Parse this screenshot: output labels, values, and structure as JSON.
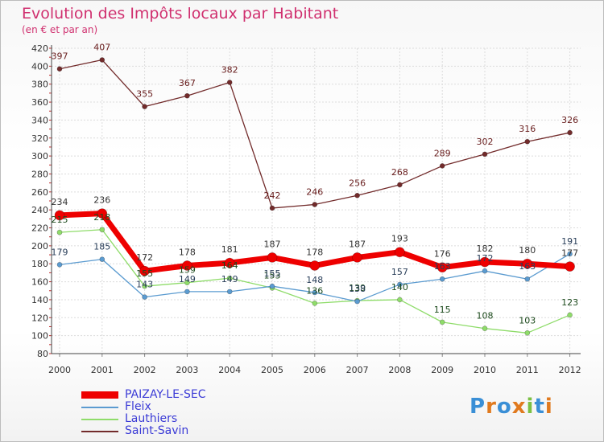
{
  "title": "Evolution des Impôts locaux par Habitant",
  "subtitle": "(en € et par an)",
  "logo": {
    "letters": [
      "P",
      "r",
      "o",
      "x",
      "i",
      "t",
      "i"
    ],
    "colors": [
      "#3a8fd6",
      "#e07a1f",
      "#3a8fd6",
      "#e07a1f",
      "#7bc043",
      "#3a8fd6",
      "#e07a1f"
    ]
  },
  "chart_data": {
    "type": "line",
    "title": "Evolution des Impôts locaux par Habitant",
    "subtitle": "(en € et par an)",
    "xlabel": "",
    "ylabel": "",
    "x": [
      "2000",
      "2001",
      "2002",
      "2003",
      "2004",
      "2005",
      "2006",
      "2007",
      "2008",
      "2009",
      "2010",
      "2011",
      "2012"
    ],
    "ylim": [
      80,
      420
    ],
    "yticks": [
      80,
      100,
      120,
      140,
      160,
      180,
      200,
      220,
      240,
      260,
      280,
      300,
      320,
      340,
      360,
      380,
      400,
      420
    ],
    "grid": true,
    "legend_position": "bottom-left",
    "series": [
      {
        "name": "Saint-Savin",
        "color": "#722b2b",
        "label_color": "#6a2020",
        "values": [
          397,
          407,
          355,
          367,
          382,
          242,
          246,
          256,
          268,
          289,
          302,
          316,
          326
        ],
        "labels": [
          "397",
          "407",
          "355",
          "367",
          "382",
          "242",
          "246",
          "256",
          "268",
          "289",
          "302",
          "316",
          "326"
        ]
      },
      {
        "name": "Lauthiers",
        "color": "#8fdc6a",
        "label_color": "#1c4a1c",
        "values": [
          215,
          218,
          155,
          159,
          164,
          153,
          136,
          139,
          140,
          115,
          108,
          103,
          123
        ],
        "labels": [
          "215",
          "218",
          "155",
          "159",
          "164",
          "153",
          "136",
          "139",
          "140",
          "115",
          "108",
          "103",
          "123"
        ]
      },
      {
        "name": "Fleix",
        "color": "#5b9bd0",
        "label_color": "#2a3f5a",
        "values": [
          179,
          185,
          143,
          149,
          149,
          155,
          148,
          138,
          157,
          163,
          172,
          163,
          191
        ],
        "labels": [
          "179",
          "185",
          "143",
          "149",
          "149",
          "155",
          "148",
          "138",
          "157",
          "163",
          "172",
          "163",
          "191"
        ]
      },
      {
        "name": "PAIZAY-LE-SEC",
        "color": "#ee0000",
        "label_color": "#333333",
        "values": [
          234,
          236,
          172,
          178,
          181,
          187,
          178,
          187,
          193,
          176,
          182,
          180,
          177
        ],
        "labels": [
          "234",
          "236",
          "172",
          "178",
          "181",
          "187",
          "178",
          "187",
          "193",
          "176",
          "182",
          "180",
          "177"
        ]
      }
    ],
    "legend": [
      {
        "name": "PAIZAY-LE-SEC",
        "color": "#ee0000",
        "text_color": "#3b3bd6"
      },
      {
        "name": "Fleix",
        "color": "#5b9bd0",
        "text_color": "#3b3bd6"
      },
      {
        "name": "Lauthiers",
        "color": "#8fdc6a",
        "text_color": "#3b3bd6"
      },
      {
        "name": "Saint-Savin",
        "color": "#722b2b",
        "text_color": "#3b3bd6"
      }
    ]
  }
}
